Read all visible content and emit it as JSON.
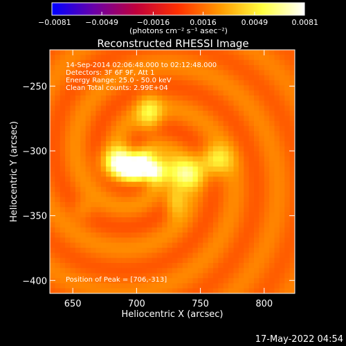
{
  "chart_data": {
    "type": "heatmap",
    "title": "Reconstructed RHESSI Image",
    "xlabel": "Heliocentric X (arcsec)",
    "ylabel": "Heliocentric Y (arcsec)",
    "xlim": [
      632,
      824
    ],
    "ylim": [
      -410,
      -222
    ],
    "x_ticks": [
      650,
      700,
      750,
      800
    ],
    "x_tick_labels": [
      "650",
      "700",
      "750",
      "800"
    ],
    "y_ticks": [
      -250,
      -300,
      -350,
      -400
    ],
    "y_tick_labels": [
      "−250",
      "−300",
      "−350",
      "−400"
    ],
    "colorbar": {
      "min": -0.0081,
      "max": 0.0081,
      "ticks": [
        -0.0081,
        -0.0049,
        -0.0016,
        0.0016,
        0.0049,
        0.0081
      ],
      "tick_labels": [
        "−0.0081",
        "−0.0049",
        "−0.0016",
        "0.0016",
        "0.0049",
        "0.0081"
      ],
      "units_label": "(photons cm⁻² s⁻¹ asec⁻²)",
      "colormap": [
        "#0000ff",
        "#6a00a8",
        "#c0003c",
        "#ff3000",
        "#ff9a00",
        "#ffff40",
        "#ffffff"
      ]
    },
    "info_lines": [
      "14-Sep-2014 02:06:48.000 to 02:12:48.000",
      "Detectors: 3F 6F 9F, Att 1",
      "Energy Range: 25.0 - 50.0 keV",
      "Clean    Total counts: 2.99E+04"
    ],
    "peak_label": "Position of Peak = [706,-313]",
    "peak": {
      "x": 706,
      "y": -313
    },
    "sources": [
      {
        "x": 706,
        "y": -313,
        "amp": 1.0,
        "sx": 12,
        "sy": 7
      },
      {
        "x": 688,
        "y": -309,
        "amp": 0.7,
        "sx": 10,
        "sy": 8
      },
      {
        "x": 737,
        "y": -318,
        "amp": 0.55,
        "sx": 11,
        "sy": 8
      },
      {
        "x": 762,
        "y": -307,
        "amp": 0.45,
        "sx": 9,
        "sy": 8
      },
      {
        "x": 710,
        "y": -271,
        "amp": 0.4,
        "sx": 7,
        "sy": 10
      },
      {
        "x": 730,
        "y": -338,
        "amp": 0.35,
        "sx": 6,
        "sy": 9
      },
      {
        "x": 658,
        "y": -345,
        "amp": 0.15,
        "sx": 6,
        "sy": 6
      }
    ],
    "background_level": 0.2,
    "ripple_amplitude": 0.12
  },
  "footer": {
    "timestamp": "17-May-2022 04:54"
  },
  "colors": {
    "background": "#000000",
    "foreground": "#ffffff"
  }
}
